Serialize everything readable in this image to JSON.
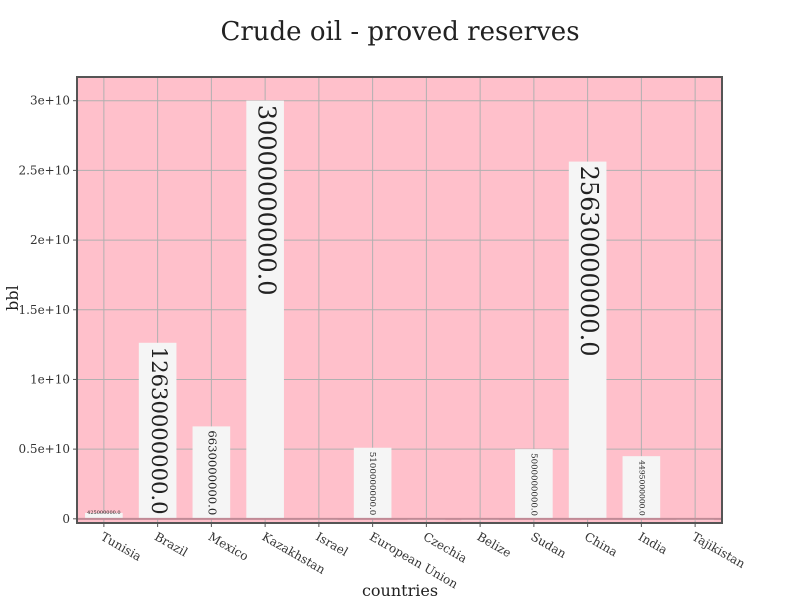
{
  "chart_data": {
    "type": "bar",
    "title": "Crude oil - proved reserves",
    "xlabel": "countries",
    "ylabel": "bbl",
    "categories": [
      "Tunisia",
      "Brazil",
      "Mexico",
      "Kazakhstan",
      "Israel",
      "European Union",
      "Czechia",
      "Belize",
      "Sudan",
      "China",
      "India",
      "Tajikistan"
    ],
    "values": [
      425000000,
      12630000000,
      6630000000,
      30000000000,
      12730000,
      5100000000,
      15000000,
      6700000,
      5000000000,
      25630000000,
      4495000000,
      12000000
    ],
    "data_labels": [
      "425000000.0",
      "12630000000.0",
      "6630000000.0",
      "30000000000.0",
      "",
      "5100000000.0",
      "",
      "",
      "5000000000.0",
      "25630000000.0",
      "4495000000.0",
      ""
    ],
    "ylim": [
      -300000000,
      31700000000
    ],
    "yticks": [
      0,
      5000000000,
      10000000000,
      15000000000,
      20000000000,
      25000000000,
      30000000000
    ],
    "ytick_labels": [
      "0",
      "0.5e+10",
      "1e+10",
      "1.5e+10",
      "2e+10",
      "2.5e+10",
      "3e+10"
    ],
    "grid": true,
    "legend": "none"
  },
  "colors": {
    "plot_background": "#ffc0cb",
    "bar_fill": "#f5f5f5",
    "grid": "#b0b0b0",
    "frame": "#555555"
  }
}
